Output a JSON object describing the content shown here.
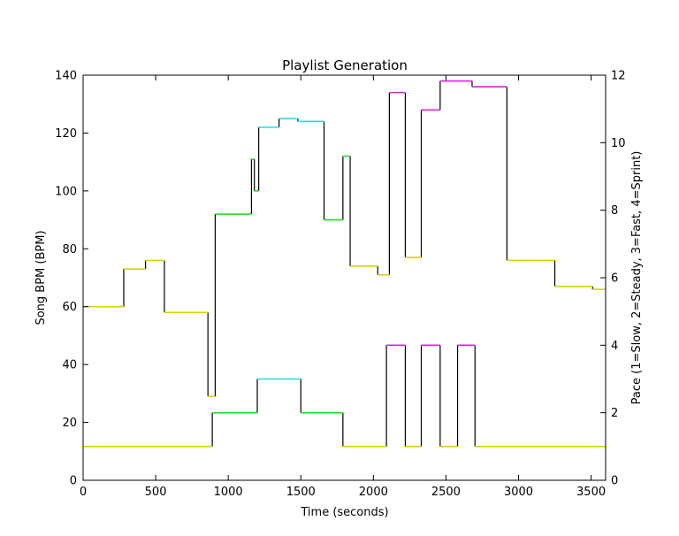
{
  "chart_data": {
    "type": "line",
    "title": "Playlist Generation",
    "xlabel": "Time (seconds)",
    "ylabel": "Song BPM (BPM)",
    "y2label": "Pace (1=Slow, 2=Steady, 3=Fast, 4=Sprint)",
    "xlim": [
      0,
      3600
    ],
    "ylim": [
      0,
      140
    ],
    "y2lim": [
      0,
      12
    ],
    "xticks": [
      0,
      500,
      1000,
      1500,
      2000,
      2500,
      3000,
      3500
    ],
    "yticks": [
      0,
      20,
      40,
      60,
      80,
      100,
      120,
      140
    ],
    "y2ticks": [
      0,
      2,
      4,
      6,
      8,
      10,
      12
    ],
    "grid": false,
    "colors": {
      "slow": "#d4d400",
      "steady": "#22dd22",
      "fast": "#22dddd",
      "sprint": "#dd22dd",
      "connector": "#000000"
    },
    "bpm_segments": [
      {
        "x0": 0,
        "x1": 280,
        "y": 60,
        "pace": 1
      },
      {
        "x0": 280,
        "x1": 430,
        "y": 73,
        "pace": 1
      },
      {
        "x0": 430,
        "x1": 560,
        "y": 76,
        "pace": 1
      },
      {
        "x0": 560,
        "x1": 860,
        "y": 58,
        "pace": 1
      },
      {
        "x0": 860,
        "x1": 910,
        "y": 29,
        "pace": 1
      },
      {
        "x0": 910,
        "x1": 1160,
        "y": 92,
        "pace": 2
      },
      {
        "x0": 1160,
        "x1": 1180,
        "y": 111,
        "pace": 2
      },
      {
        "x0": 1180,
        "x1": 1210,
        "y": 100,
        "pace": 2
      },
      {
        "x0": 1210,
        "x1": 1350,
        "y": 122,
        "pace": 3
      },
      {
        "x0": 1350,
        "x1": 1480,
        "y": 125,
        "pace": 3
      },
      {
        "x0": 1480,
        "x1": 1660,
        "y": 124,
        "pace": 3
      },
      {
        "x0": 1660,
        "x1": 1790,
        "y": 90,
        "pace": 2
      },
      {
        "x0": 1790,
        "x1": 1840,
        "y": 112,
        "pace": 2
      },
      {
        "x0": 1840,
        "x1": 2030,
        "y": 74,
        "pace": 1
      },
      {
        "x0": 2030,
        "x1": 2110,
        "y": 71,
        "pace": 1
      },
      {
        "x0": 2110,
        "x1": 2220,
        "y": 134,
        "pace": 4
      },
      {
        "x0": 2220,
        "x1": 2330,
        "y": 77,
        "pace": 1
      },
      {
        "x0": 2330,
        "x1": 2460,
        "y": 128,
        "pace": 4
      },
      {
        "x0": 2460,
        "x1": 2680,
        "y": 138,
        "pace": 4
      },
      {
        "x0": 2680,
        "x1": 2920,
        "y": 136,
        "pace": 4
      },
      {
        "x0": 2920,
        "x1": 3250,
        "y": 76,
        "pace": 1
      },
      {
        "x0": 3250,
        "x1": 3510,
        "y": 67,
        "pace": 1
      },
      {
        "x0": 3510,
        "x1": 3600,
        "y": 66,
        "pace": 1
      }
    ],
    "pace_segments": [
      {
        "x0": 0,
        "x1": 890,
        "pace": 1
      },
      {
        "x0": 890,
        "x1": 1200,
        "pace": 2
      },
      {
        "x0": 1200,
        "x1": 1500,
        "pace": 3
      },
      {
        "x0": 1500,
        "x1": 1790,
        "pace": 2
      },
      {
        "x0": 1790,
        "x1": 2090,
        "pace": 1
      },
      {
        "x0": 2090,
        "x1": 2220,
        "pace": 4
      },
      {
        "x0": 2220,
        "x1": 2330,
        "pace": 1
      },
      {
        "x0": 2330,
        "x1": 2460,
        "pace": 4
      },
      {
        "x0": 2460,
        "x1": 2580,
        "pace": 1
      },
      {
        "x0": 2580,
        "x1": 2700,
        "pace": 4
      },
      {
        "x0": 2700,
        "x1": 3600,
        "pace": 1
      }
    ]
  }
}
